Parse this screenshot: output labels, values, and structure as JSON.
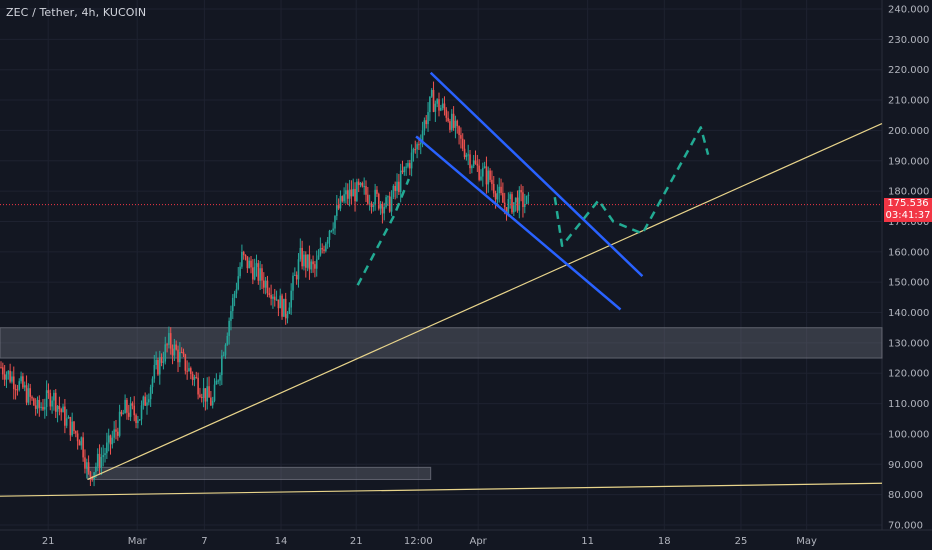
{
  "title": "ZEC / Tether, 4h, KUCOIN",
  "price_tag": {
    "price": "175.536",
    "countdown": "03:41:37"
  },
  "colors": {
    "background": "#131722",
    "grid": "#1e2230",
    "axis_text": "#b2b5be",
    "candle_up": "#26a69a",
    "candle_down": "#ef5350",
    "channel": "#2962ff",
    "trendline": "#e8d48b",
    "projection": "#22ab94",
    "zone": "#787b86",
    "price_line": "#f23645"
  },
  "chart_data": {
    "type": "candlestick",
    "symbol": "ZEC / Tether",
    "interval": "4h",
    "exchange": "KUCOIN",
    "ylim": [
      70,
      240
    ],
    "y_ticks": [
      "240.000",
      "230.000",
      "220.000",
      "210.000",
      "200.000",
      "190.000",
      "180.000",
      "170.000",
      "160.000",
      "150.000",
      "140.000",
      "130.000",
      "120.000",
      "110.000",
      "100.000",
      "90.000",
      "80.000",
      "70.000"
    ],
    "x_ticks": [
      "21",
      "Mar",
      "7",
      "14",
      "21",
      "12:00",
      "Apr",
      "11",
      "18",
      "25",
      "May"
    ],
    "last_price": 175.536,
    "close_path": [
      [
        0,
        122
      ],
      [
        3,
        115
      ],
      [
        5,
        108
      ],
      [
        7,
        113
      ],
      [
        9,
        104
      ],
      [
        11,
        98
      ],
      [
        12,
        86
      ],
      [
        15,
        97
      ],
      [
        17,
        108
      ],
      [
        19,
        106
      ],
      [
        21,
        120
      ],
      [
        23,
        130
      ],
      [
        24,
        127
      ],
      [
        26,
        120
      ],
      [
        28,
        113
      ],
      [
        29,
        110
      ],
      [
        31,
        135
      ],
      [
        33,
        158
      ],
      [
        35,
        153
      ],
      [
        37,
        148
      ],
      [
        39,
        140
      ],
      [
        41,
        158
      ],
      [
        43,
        154
      ],
      [
        45,
        168
      ],
      [
        47,
        178
      ],
      [
        49,
        180
      ],
      [
        51,
        178
      ],
      [
        53,
        175
      ],
      [
        55,
        185
      ],
      [
        57,
        195
      ],
      [
        59,
        210
      ],
      [
        61,
        206
      ],
      [
        63,
        196
      ],
      [
        65,
        188
      ],
      [
        67,
        184
      ],
      [
        69,
        175
      ],
      [
        71,
        177
      ],
      [
        73,
        175
      ],
      [
        75,
        170
      ],
      [
        76,
        168
      ]
    ],
    "zones": [
      {
        "y_low": 125,
        "y_high": 135
      },
      {
        "y_low": 85,
        "y_high": 89
      }
    ],
    "trendlines": [
      {
        "from": [
          12,
          85
        ],
        "to": [
          128,
          210
        ]
      },
      {
        "from": [
          0,
          79.5
        ],
        "to": [
          128,
          84
        ]
      }
    ],
    "channel_lines": [
      {
        "from": [
          59,
          219
        ],
        "to": [
          88,
          152
        ]
      },
      {
        "from": [
          57,
          198
        ],
        "to": [
          85,
          141
        ]
      }
    ],
    "projection_path": [
      [
        76,
        178
      ],
      [
        77,
        162
      ],
      [
        82,
        177
      ],
      [
        84,
        170
      ],
      [
        88,
        166
      ],
      [
        96,
        201
      ],
      [
        97,
        192
      ]
    ],
    "projection_early": [
      [
        49,
        149
      ],
      [
        54,
        172
      ],
      [
        56,
        184
      ]
    ]
  }
}
